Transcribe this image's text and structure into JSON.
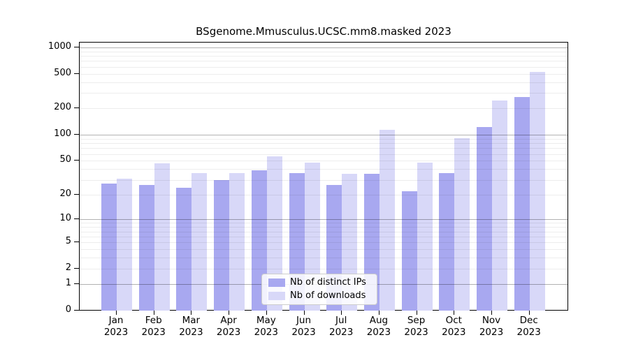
{
  "title": "BSgenome.Mmusculus.UCSC.mm8.masked 2023",
  "chart_data": {
    "type": "bar",
    "title": "BSgenome.Mmusculus.UCSC.mm8.masked 2023",
    "categories": [
      "Jan",
      "Feb",
      "Mar",
      "Apr",
      "May",
      "Jun",
      "Jul",
      "Aug",
      "Sep",
      "Oct",
      "Nov",
      "Dec"
    ],
    "year_label": "2023",
    "series": [
      {
        "name": "Nb of distinct IPs",
        "color": "#a8a8f0",
        "values": [
          27,
          26,
          24,
          30,
          39,
          36,
          26,
          35,
          22,
          36,
          122,
          269
        ]
      },
      {
        "name": "Nb of downloads",
        "color": "#d8d8f8",
        "values": [
          31,
          47,
          36,
          36,
          56,
          48,
          35,
          114,
          48,
          91,
          247,
          527
        ]
      }
    ],
    "xlabel": "",
    "ylabel": "",
    "y_ticks": [
      0,
      1,
      2,
      5,
      10,
      20,
      50,
      100,
      200,
      500,
      1000
    ],
    "ylim": [
      0,
      1000
    ],
    "scale": "log1p",
    "grid": "horizontal",
    "grid_major_at": [
      1,
      10,
      100,
      1000
    ],
    "legend_position": "inside-bottom-center",
    "colors": {
      "axis": "#000000",
      "grid_minor": "#ededed",
      "grid_major": "#b5b5b5",
      "background": "#ffffff"
    }
  }
}
